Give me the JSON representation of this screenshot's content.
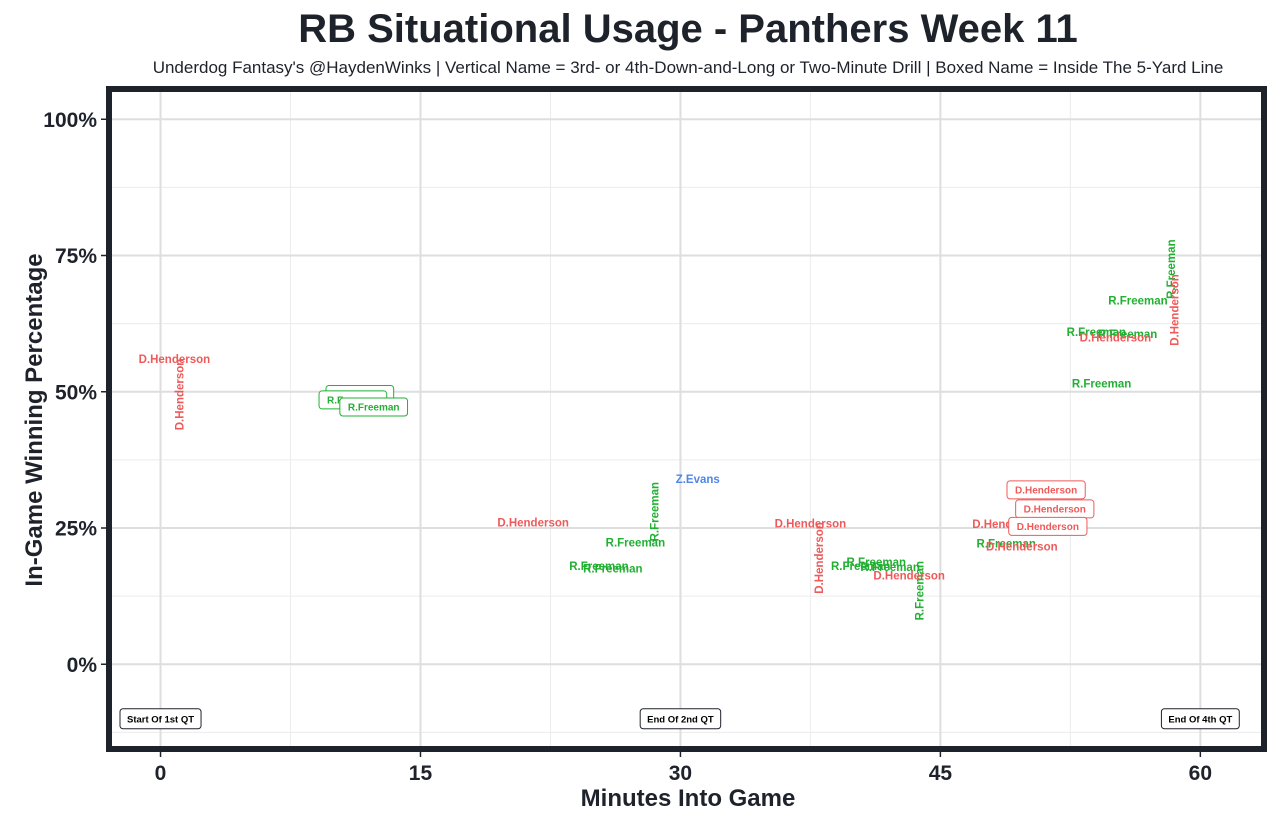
{
  "chart_data": {
    "type": "scatter",
    "title": "RB Situational Usage - Panthers Week 11",
    "subtitle": "Underdog Fantasy's @HaydenWinks | Vertical Name = 3rd- or 4th-Down-and-Long or Two-Minute Drill | Boxed Name = Inside The 5-Yard Line",
    "xlabel": "Minutes Into Game",
    "ylabel": "In-Game Winning Percentage",
    "xlim": [
      -2.8,
      63.5
    ],
    "ylim": [
      -15,
      105
    ],
    "x_ticks": [
      0,
      15,
      30,
      45,
      60
    ],
    "x_tick_labels": [
      "0",
      "15",
      "30",
      "45",
      "60"
    ],
    "y_ticks": [
      0,
      25,
      50,
      75,
      100
    ],
    "y_tick_labels": [
      "0%",
      "25%",
      "50%",
      "75%",
      "100%"
    ],
    "minor_x_ticks": [
      7.5,
      22.5,
      37.5,
      52.5
    ],
    "minor_y_ticks": [
      -12.5,
      12.5,
      37.5,
      62.5,
      87.5
    ],
    "grid": true,
    "colors": {
      "R.Freeman": "#22b033",
      "D.Henderson": "#ee5a5a",
      "Z.Evans": "#4f86e8"
    },
    "series": [
      {
        "name": "R.Freeman",
        "points": [
          {
            "x": 11.5,
            "y": 49.5,
            "label": "R.Freeman",
            "style": "boxed"
          },
          {
            "x": 11.1,
            "y": 48.5,
            "label": "R.Freeman",
            "style": "boxed"
          },
          {
            "x": 12.3,
            "y": 47.2,
            "label": "R.Freeman",
            "style": "boxed"
          },
          {
            "x": 25.3,
            "y": 18.0,
            "label": "R.Freeman",
            "style": "normal"
          },
          {
            "x": 26.1,
            "y": 17.6,
            "label": "R.Freeman",
            "style": "normal"
          },
          {
            "x": 27.4,
            "y": 22.3,
            "label": "R.Freeman",
            "style": "normal"
          },
          {
            "x": 28.5,
            "y": 28.0,
            "label": "R.Freeman",
            "style": "vertical"
          },
          {
            "x": 41.3,
            "y": 18.8,
            "label": "R.Freeman",
            "style": "normal"
          },
          {
            "x": 40.4,
            "y": 18.0,
            "label": "R.Freeman",
            "style": "normal"
          },
          {
            "x": 42.1,
            "y": 17.8,
            "label": "R.Freeman",
            "style": "normal"
          },
          {
            "x": 43.8,
            "y": 13.5,
            "label": "R.Freeman",
            "style": "vertical"
          },
          {
            "x": 48.8,
            "y": 22.2,
            "label": "R.Freeman",
            "style": "normal"
          },
          {
            "x": 54.0,
            "y": 61.0,
            "label": "R.Freeman",
            "style": "normal"
          },
          {
            "x": 55.8,
            "y": 60.6,
            "label": "R.Freeman",
            "style": "normal"
          },
          {
            "x": 56.4,
            "y": 66.7,
            "label": "R.Freeman",
            "style": "normal"
          },
          {
            "x": 54.3,
            "y": 51.5,
            "label": "R.Freeman",
            "style": "normal"
          },
          {
            "x": 58.3,
            "y": 72.5,
            "label": "R.Freeman",
            "style": "vertical"
          }
        ]
      },
      {
        "name": "D.Henderson",
        "points": [
          {
            "x": 0.8,
            "y": 56.0,
            "label": "D.Henderson",
            "style": "normal"
          },
          {
            "x": 1.1,
            "y": 49.5,
            "label": "D.Henderson",
            "style": "vertical"
          },
          {
            "x": 21.5,
            "y": 26.0,
            "label": "D.Henderson",
            "style": "normal"
          },
          {
            "x": 37.5,
            "y": 25.8,
            "label": "D.Henderson",
            "style": "normal"
          },
          {
            "x": 38.0,
            "y": 19.5,
            "label": "D.Henderson",
            "style": "vertical"
          },
          {
            "x": 43.2,
            "y": 16.3,
            "label": "D.Henderson",
            "style": "normal"
          },
          {
            "x": 48.9,
            "y": 25.7,
            "label": "D.Henderson",
            "style": "normal"
          },
          {
            "x": 49.7,
            "y": 21.6,
            "label": "D.Henderson",
            "style": "normal"
          },
          {
            "x": 51.1,
            "y": 32.0,
            "label": "D.Henderson",
            "style": "boxed"
          },
          {
            "x": 51.6,
            "y": 28.5,
            "label": "D.Henderson",
            "style": "boxed"
          },
          {
            "x": 51.2,
            "y": 25.3,
            "label": "D.Henderson",
            "style": "boxed"
          },
          {
            "x": 55.1,
            "y": 60.0,
            "label": "D.Henderson",
            "style": "normal"
          },
          {
            "x": 58.5,
            "y": 65.0,
            "label": "D.Henderson",
            "style": "vertical"
          }
        ]
      },
      {
        "name": "Z.Evans",
        "points": [
          {
            "x": 31.0,
            "y": 34.0,
            "label": "Z.Evans",
            "style": "normal"
          }
        ]
      }
    ],
    "annotations": [
      {
        "x": 0,
        "y": -10,
        "text": "Start Of 1st QT"
      },
      {
        "x": 30,
        "y": -10,
        "text": "End Of 2nd QT"
      },
      {
        "x": 60,
        "y": -10,
        "text": "End Of 4th QT"
      }
    ]
  }
}
